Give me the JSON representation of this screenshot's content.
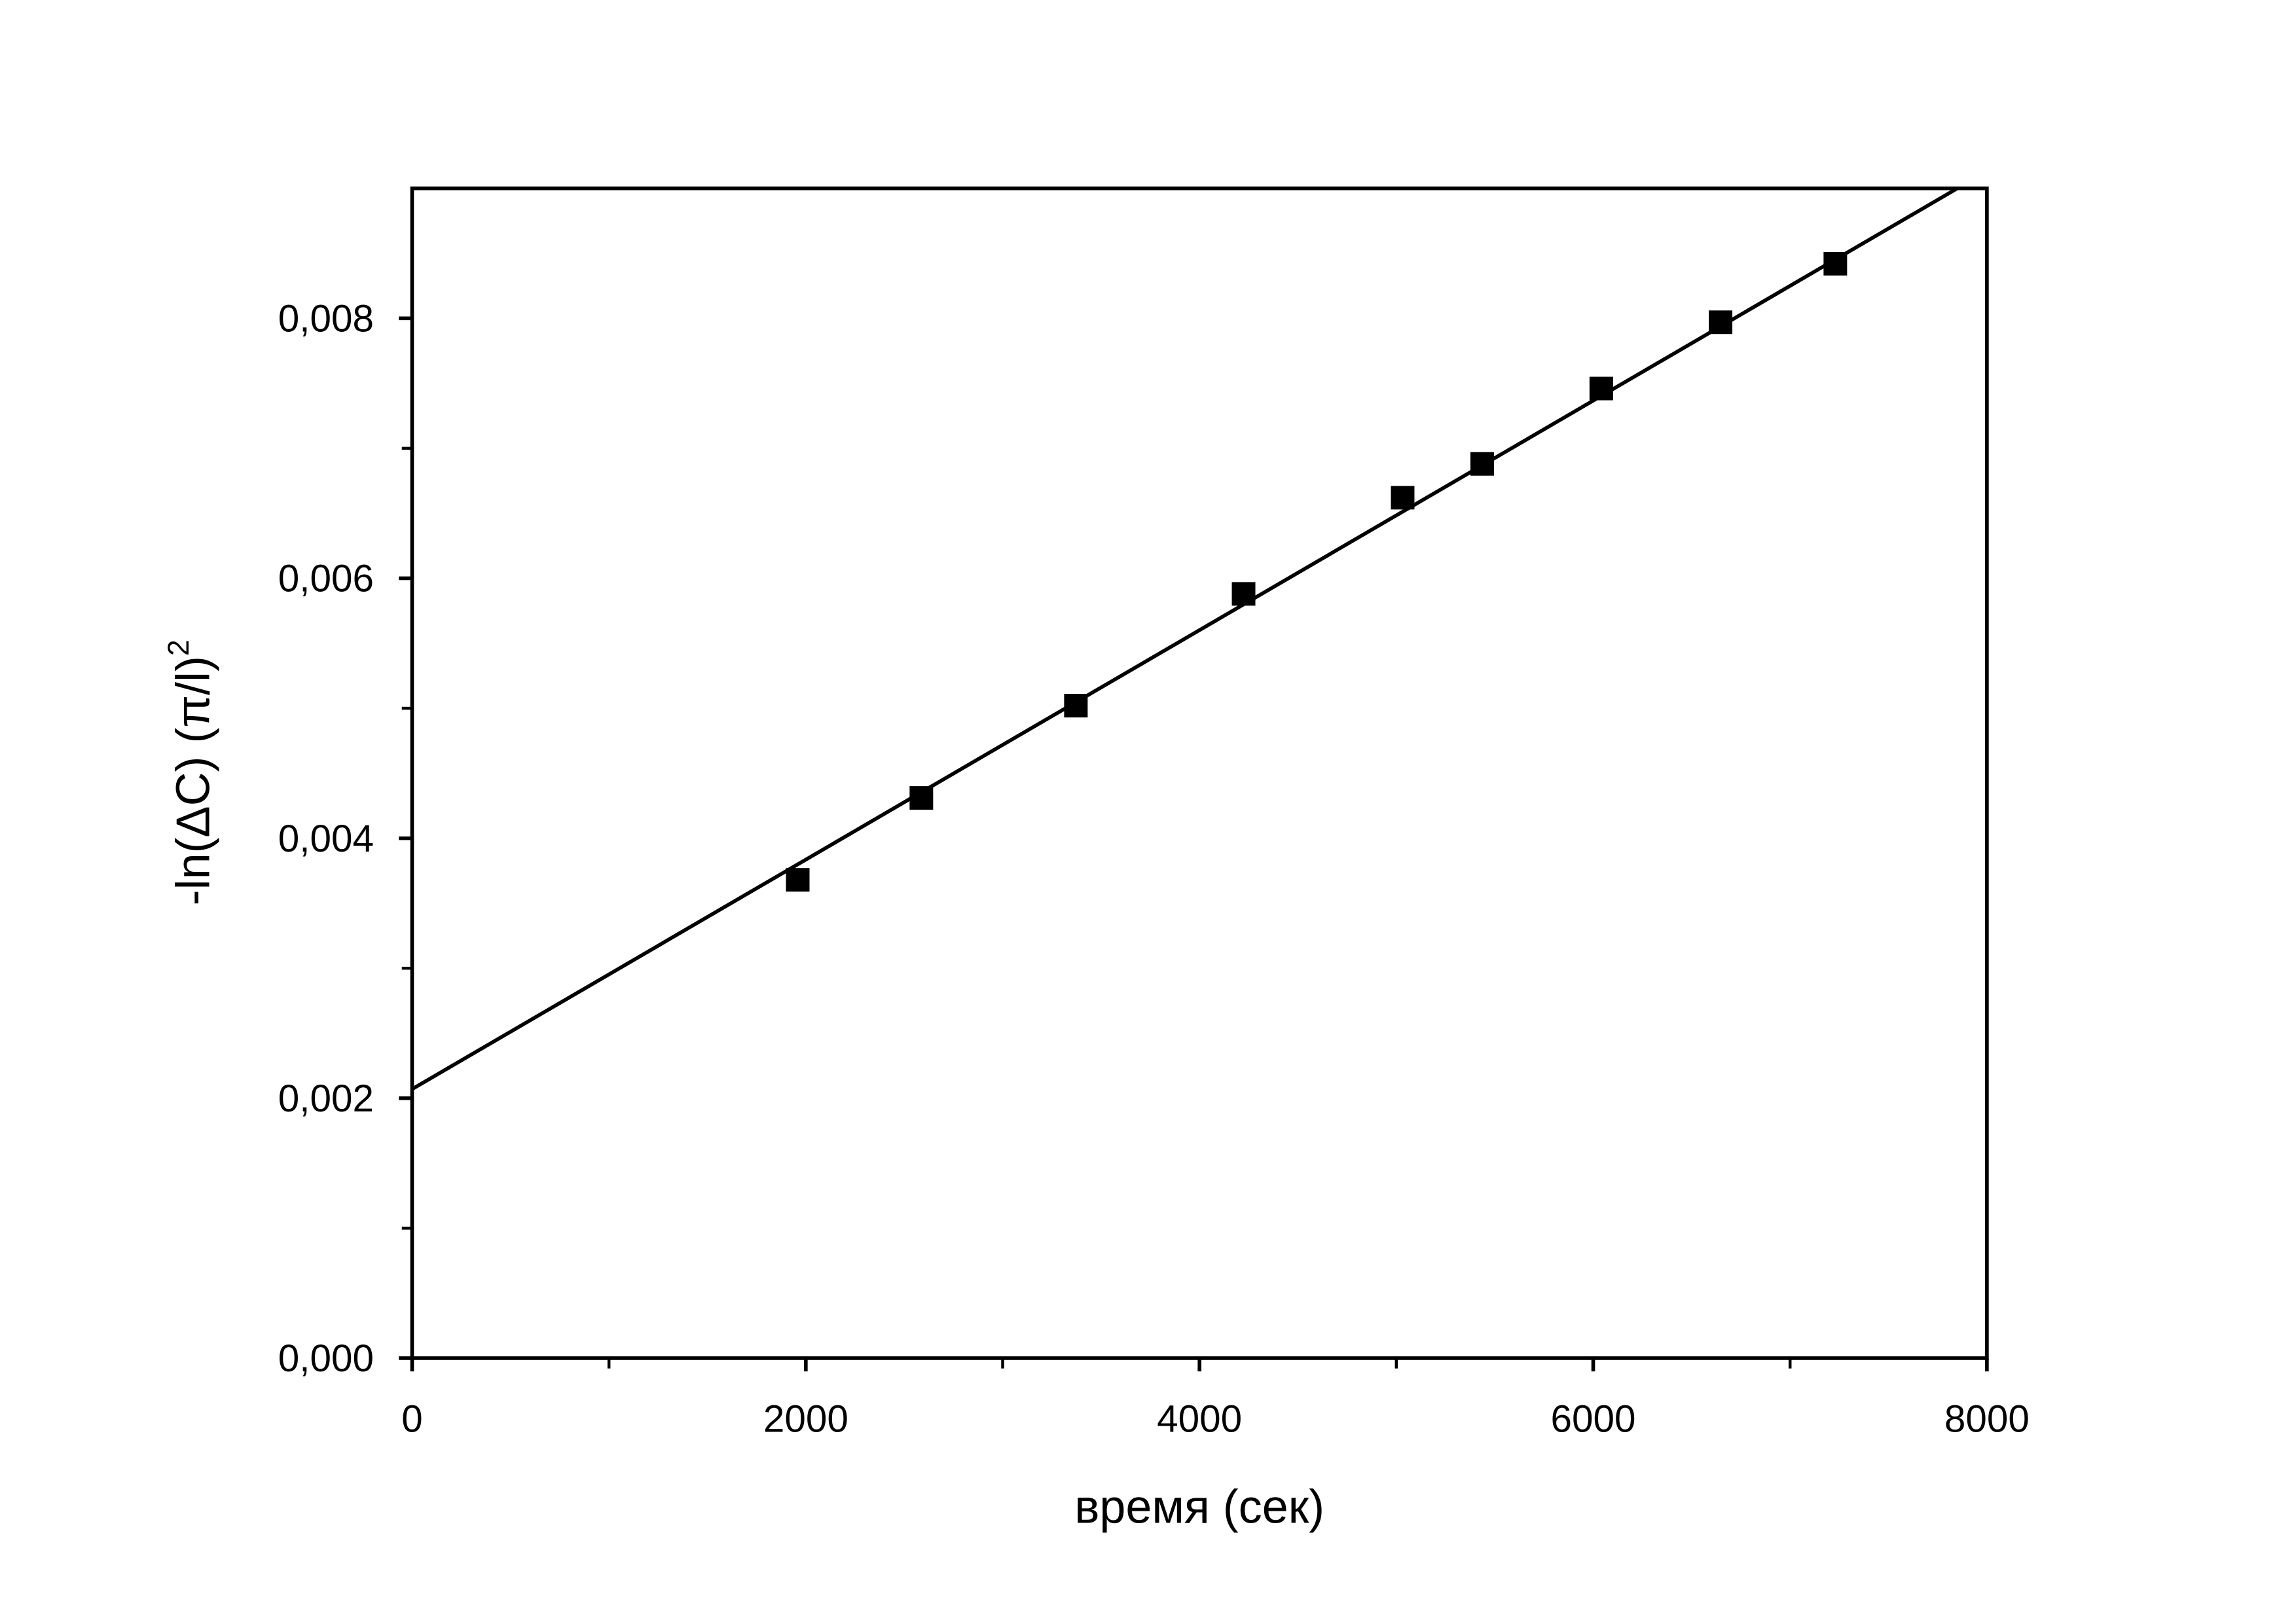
{
  "chart_data": {
    "type": "scatter",
    "xlabel": "время (сек)",
    "ylabel": "-ln(ΔC) (π/l)",
    "ylabel_sup": "2",
    "xlim": [
      0,
      8000
    ],
    "ylim": [
      0,
      0.009
    ],
    "xticks": [
      0,
      2000,
      4000,
      6000,
      8000
    ],
    "xminorticks": [
      1000,
      3000,
      5000,
      7000
    ],
    "yticks": [
      {
        "value": 0,
        "label": "0,000"
      },
      {
        "value": 0.002,
        "label": "0,002"
      },
      {
        "value": 0.004,
        "label": "0,004"
      },
      {
        "value": 0.006,
        "label": "0,006"
      },
      {
        "value": 0.008,
        "label": "0,008"
      }
    ],
    "yminorticks": [
      0.001,
      0.003,
      0.005,
      0.007
    ],
    "series": [
      {
        "type": "scatter",
        "color": "#000000",
        "x": [
          1959,
          2587,
          3372,
          4224,
          5032,
          5436,
          6041,
          6647,
          7230
        ],
        "values": [
          0.00368,
          0.00431,
          0.00502,
          0.00588,
          0.00662,
          0.00688,
          0.00746,
          0.00797,
          0.00842
        ]
      },
      {
        "type": "line",
        "color": "#000000",
        "x": [
          0,
          7850
        ],
        "values": [
          0.00207,
          0.009
        ]
      }
    ]
  }
}
